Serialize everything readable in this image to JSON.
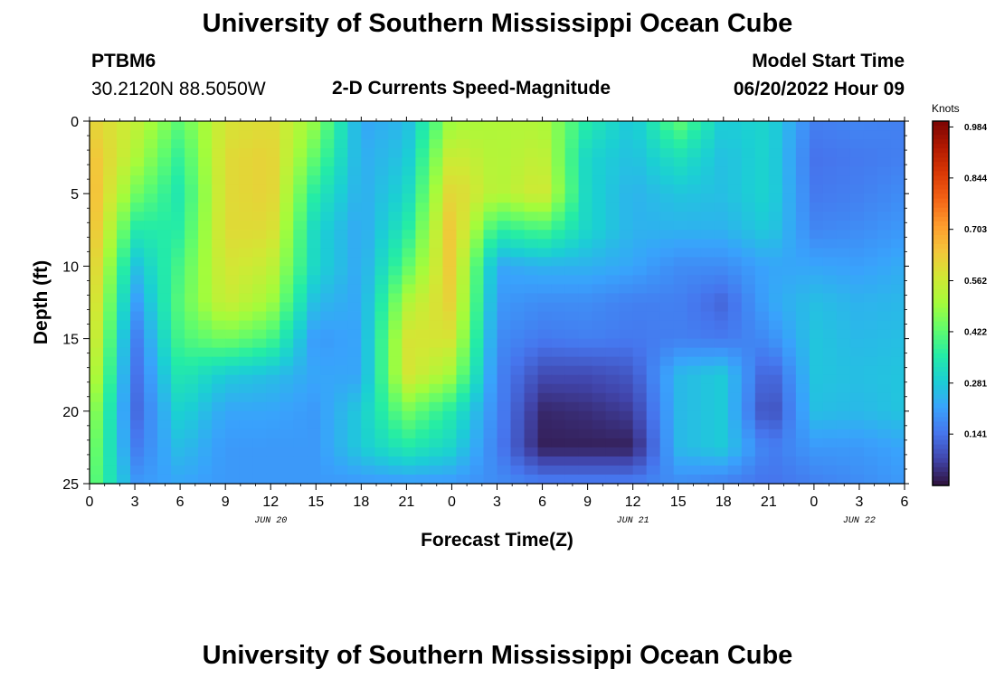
{
  "page": {
    "title": "University of Southern Mississippi Ocean Cube",
    "title_repeat": "University of Southern Mississippi Ocean Cube"
  },
  "header": {
    "station": "PTBM6",
    "coords": "30.2120N  88.5050W",
    "plot_title": "2-D Currents Speed-Magnitude",
    "model_label": "Model Start Time",
    "model_time": "06/20/2022 Hour 09"
  },
  "chart_data": {
    "type": "heatmap",
    "title": "2-D Currents Speed-Magnitude",
    "xlabel": "Forecast Time(Z)",
    "ylabel": "Depth (ft)",
    "x_range_hours": [
      0,
      54
    ],
    "y_range_ft": [
      0,
      25
    ],
    "y_inverted": true,
    "x_ticks": [
      {
        "hour": 0,
        "label": "0"
      },
      {
        "hour": 3,
        "label": "3"
      },
      {
        "hour": 6,
        "label": "6"
      },
      {
        "hour": 9,
        "label": "9"
      },
      {
        "hour": 12,
        "label": "12"
      },
      {
        "hour": 15,
        "label": "15"
      },
      {
        "hour": 18,
        "label": "18"
      },
      {
        "hour": 21,
        "label": "21"
      },
      {
        "hour": 24,
        "label": "0"
      },
      {
        "hour": 27,
        "label": "3"
      },
      {
        "hour": 30,
        "label": "6"
      },
      {
        "hour": 33,
        "label": "9"
      },
      {
        "hour": 36,
        "label": "12"
      },
      {
        "hour": 39,
        "label": "15"
      },
      {
        "hour": 42,
        "label": "18"
      },
      {
        "hour": 45,
        "label": "21"
      },
      {
        "hour": 48,
        "label": "0"
      },
      {
        "hour": 51,
        "label": "3"
      },
      {
        "hour": 54,
        "label": "6"
      }
    ],
    "y_ticks": [
      {
        "depth": 0,
        "label": "0"
      },
      {
        "depth": 5,
        "label": "5"
      },
      {
        "depth": 10,
        "label": "10"
      },
      {
        "depth": 15,
        "label": "15"
      },
      {
        "depth": 20,
        "label": "20"
      },
      {
        "depth": 25,
        "label": "25"
      }
    ],
    "date_labels": [
      {
        "hour": 12,
        "label": "JUN 20"
      },
      {
        "hour": 36,
        "label": "JUN 21"
      },
      {
        "hour": 51,
        "label": "JUN 22"
      }
    ],
    "colorbar": {
      "unit": "Knots",
      "min": 0.0,
      "max": 1.0,
      "tick_values": [
        0.984,
        0.844,
        0.703,
        0.562,
        0.422,
        0.281,
        0.141
      ],
      "tick_labels": [
        "0.984",
        "0.844",
        "0.703",
        "0.562",
        "0.422",
        "0.281",
        "0.141"
      ],
      "colors": [
        "#30123b",
        "#4145ab",
        "#4675ed",
        "#39a2fc",
        "#1bcfd4",
        "#24eca6",
        "#61fc6c",
        "#a4fc3b",
        "#d1e834",
        "#f3c63a",
        "#fe9b2d",
        "#f36315",
        "#d93806",
        "#b11901",
        "#7a0403"
      ]
    },
    "speed_field_knots": {
      "description": "Estimated current speed (knots) read from the color shading; rows = depth 0 to 25 ft in 2.5 ft steps, columns = hour 0 to 54 in 3 h steps",
      "depths_ft": [
        0,
        2.5,
        5,
        7.5,
        10,
        12.5,
        15,
        17.5,
        20,
        22.5,
        25
      ],
      "hours": [
        0,
        3,
        6,
        9,
        12,
        15,
        18,
        21,
        24,
        27,
        30,
        33,
        36,
        39,
        42,
        45,
        48,
        51,
        54
      ],
      "values": [
        [
          0.62,
          0.55,
          0.42,
          0.58,
          0.6,
          0.48,
          0.22,
          0.25,
          0.5,
          0.52,
          0.52,
          0.35,
          0.27,
          0.43,
          0.28,
          0.3,
          0.16,
          0.17,
          0.16
        ],
        [
          0.66,
          0.52,
          0.37,
          0.6,
          0.62,
          0.42,
          0.23,
          0.27,
          0.57,
          0.52,
          0.55,
          0.3,
          0.26,
          0.33,
          0.26,
          0.3,
          0.14,
          0.15,
          0.16
        ],
        [
          0.68,
          0.45,
          0.34,
          0.6,
          0.62,
          0.35,
          0.23,
          0.3,
          0.62,
          0.52,
          0.58,
          0.3,
          0.24,
          0.27,
          0.26,
          0.3,
          0.15,
          0.16,
          0.18
        ],
        [
          0.68,
          0.35,
          0.36,
          0.6,
          0.6,
          0.3,
          0.22,
          0.35,
          0.65,
          0.36,
          0.4,
          0.3,
          0.24,
          0.24,
          0.24,
          0.28,
          0.17,
          0.18,
          0.2
        ],
        [
          0.66,
          0.26,
          0.4,
          0.58,
          0.55,
          0.3,
          0.22,
          0.42,
          0.64,
          0.22,
          0.24,
          0.24,
          0.22,
          0.18,
          0.18,
          0.22,
          0.22,
          0.21,
          0.23
        ],
        [
          0.64,
          0.2,
          0.42,
          0.56,
          0.5,
          0.25,
          0.22,
          0.52,
          0.62,
          0.2,
          0.18,
          0.18,
          0.16,
          0.16,
          0.12,
          0.22,
          0.26,
          0.24,
          0.25
        ],
        [
          0.62,
          0.15,
          0.4,
          0.45,
          0.4,
          0.2,
          0.22,
          0.58,
          0.58,
          0.18,
          0.15,
          0.16,
          0.15,
          0.16,
          0.15,
          0.18,
          0.27,
          0.25,
          0.26
        ],
        [
          0.58,
          0.13,
          0.35,
          0.28,
          0.26,
          0.22,
          0.22,
          0.58,
          0.5,
          0.17,
          0.08,
          0.08,
          0.1,
          0.25,
          0.28,
          0.1,
          0.27,
          0.26,
          0.27
        ],
        [
          0.52,
          0.12,
          0.3,
          0.22,
          0.22,
          0.2,
          0.28,
          0.45,
          0.35,
          0.17,
          0.03,
          0.04,
          0.06,
          0.25,
          0.28,
          0.07,
          0.26,
          0.25,
          0.27
        ],
        [
          0.48,
          0.15,
          0.26,
          0.2,
          0.2,
          0.2,
          0.28,
          0.35,
          0.3,
          0.16,
          0.02,
          0.02,
          0.02,
          0.25,
          0.28,
          0.15,
          0.2,
          0.2,
          0.22
        ],
        [
          0.45,
          0.2,
          0.22,
          0.2,
          0.2,
          0.2,
          0.2,
          0.2,
          0.2,
          0.18,
          0.16,
          0.16,
          0.16,
          0.18,
          0.16,
          0.14,
          0.16,
          0.18,
          0.2
        ]
      ]
    }
  }
}
